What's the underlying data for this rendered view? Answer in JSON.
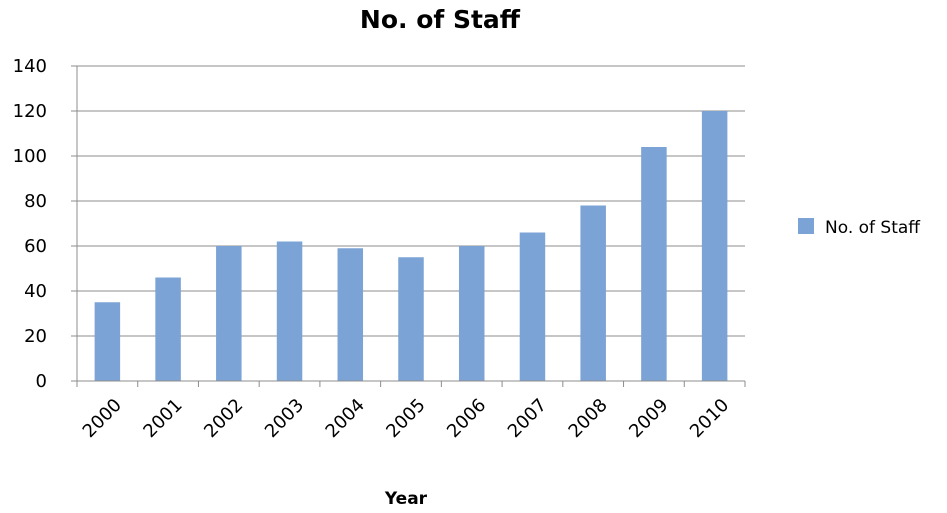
{
  "chart_data": {
    "type": "bar",
    "title": "No. of Staff",
    "xlabel": "Year",
    "ylabel": "",
    "categories": [
      "2000",
      "2001",
      "2002",
      "2003",
      "2004",
      "2005",
      "2006",
      "2007",
      "2008",
      "2009",
      "2010"
    ],
    "series": [
      {
        "name": "No. of Staff",
        "values": [
          35,
          46,
          60,
          62,
          59,
          55,
          60,
          66,
          78,
          104,
          120
        ],
        "color": "#7ba3d6"
      }
    ],
    "ylim": [
      0,
      140
    ],
    "yticks": [
      0,
      20,
      40,
      60,
      80,
      100,
      120,
      140
    ],
    "grid": true,
    "legend_position": "right"
  }
}
